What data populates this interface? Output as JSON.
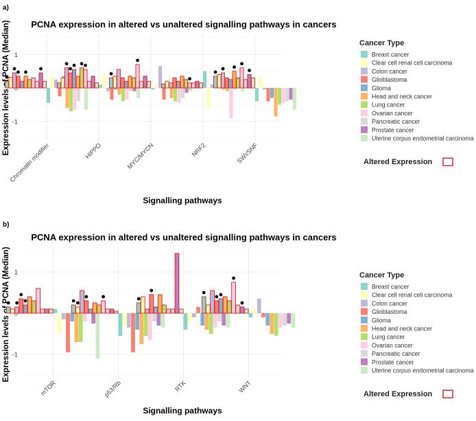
{
  "legend": {
    "title": "Cancer Type",
    "items": [
      {
        "name": "Breast cancer",
        "color": "#8DD3C7"
      },
      {
        "name": "Clear cell renal cell carcinoma",
        "color": "#FFFFB3"
      },
      {
        "name": "Colon cancer",
        "color": "#BEBADA"
      },
      {
        "name": "Glioblastoma",
        "color": "#FB8072"
      },
      {
        "name": "Glioma",
        "color": "#80B1D3"
      },
      {
        "name": "Head and neck cancer",
        "color": "#FDB462"
      },
      {
        "name": "Lung cancer",
        "color": "#B3DE69"
      },
      {
        "name": "Ovarian cancer",
        "color": "#FCCDE5"
      },
      {
        "name": "Pancreatic cancer",
        "color": "#D9D9D9"
      },
      {
        "name": "Prostate cancer",
        "color": "#BC80BD"
      },
      {
        "name": "Uterine corpus endometrial carcinoma",
        "color": "#CCEBC5"
      }
    ],
    "altered_label": "Altered Expression",
    "altered_color": "#E41A1C"
  },
  "chart_data": [
    {
      "type": "bar",
      "panel_label": "a)",
      "title": "PCNA expression in altered vs unaltered signalling pathways in cancers",
      "xlabel": "Signalling pathways",
      "ylabel": "Expression levels of PCNA (Median)",
      "ylim": [
        -1.6,
        1.6
      ],
      "yticks": [
        -1,
        0,
        1
      ],
      "categories": [
        "Chromatin modifier",
        "HIPPO",
        "MYC/MYCN",
        "NRF2",
        "SWI/SNF"
      ],
      "series_names": [
        "Breast cancer",
        "Clear cell renal cell carcinoma",
        "Colon cancer",
        "Glioblastoma",
        "Glioma",
        "Head and neck cancer",
        "Lung cancer",
        "Ovarian cancer",
        "Pancreatic cancer",
        "Prostate cancer",
        "Uterine corpus endometrial carcinoma"
      ],
      "altered": [
        [
          0.2,
          0.32,
          0.45,
          0.35,
          0.2,
          0.35,
          0.25,
          0.3,
          0.2,
          0.45,
          0.2
        ],
        [
          0.15,
          0.3,
          0.6,
          0.45,
          0.55,
          0.35,
          0.6,
          0.55,
          0.2,
          0.35,
          0.15
        ],
        [
          0.3,
          0.35,
          0.55,
          0.3,
          0.2,
          0.35,
          0.3,
          0.7,
          0.2,
          0.35,
          0.2
        ],
        [
          0.12,
          0.2,
          0.15,
          0.3,
          0.2,
          0.35,
          0.25,
          0.15,
          0.15,
          0.2,
          0.15
        ],
        [
          0.35,
          0.4,
          0.45,
          0.3,
          0.25,
          0.5,
          0.3,
          0.6,
          0.25,
          0.4,
          0.3
        ]
      ],
      "unaltered": [
        [
          -0.45,
          0.35,
          0.25,
          -0.25,
          0.35,
          -0.6,
          -0.7,
          -0.65,
          -0.4,
          0.55,
          -0.65
        ],
        [
          0.1,
          0.4,
          -0.1,
          -0.35,
          -0.05,
          -0.2,
          -0.4,
          -0.35,
          -0.1,
          -0.1,
          -0.3
        ],
        [
          -0.05,
          0.1,
          0.65,
          -0.35,
          0.15,
          -0.3,
          -0.4,
          -0.45,
          -0.3,
          -0.15,
          -0.1
        ],
        [
          0.5,
          -0.6,
          0.1,
          0.35,
          0.1,
          -0.05,
          -0.1,
          -0.9,
          -0.05,
          0.05,
          -0.1
        ],
        [
          -0.4,
          0.3,
          -0.05,
          -0.4,
          -0.3,
          -0.85,
          -0.5,
          -0.45,
          -0.4,
          -0.35,
          -0.65
        ]
      ],
      "significant": [
        [
          1,
          0,
          1,
          1,
          0,
          1,
          0,
          0,
          0,
          1,
          0
        ],
        [
          0,
          0,
          1,
          1,
          1,
          0,
          1,
          1,
          0,
          0,
          0
        ],
        [
          1,
          0,
          0,
          0,
          0,
          0,
          0,
          1,
          0,
          0,
          0
        ],
        [
          0,
          0,
          0,
          0,
          0,
          0,
          0,
          1,
          0,
          0,
          0
        ],
        [
          1,
          0,
          1,
          0,
          0,
          1,
          0,
          1,
          0,
          1,
          0
        ]
      ]
    },
    {
      "type": "bar",
      "panel_label": "b)",
      "title": "PCNA expression in altered vs unaltered signalling pathways in cancers",
      "xlabel": "Signalling pathways",
      "ylabel": "Expression levels of PCNA (Median)",
      "ylim": [
        -1.6,
        1.6
      ],
      "yticks": [
        -1,
        0,
        1
      ],
      "categories": [
        "mTOR",
        "p53/Rb",
        "RTK",
        "WNT"
      ],
      "series_names": [
        "Breast cancer",
        "Clear cell renal cell carcinoma",
        "Colon cancer",
        "Glioblastoma",
        "Glioma",
        "Head and neck cancer",
        "Lung cancer",
        "Ovarian cancer",
        "Pancreatic cancer",
        "Prostate cancer",
        "Uterine corpus endometrial carcinoma"
      ],
      "altered": [
        [
          0.15,
          0.1,
          0.15,
          0.35,
          0.2,
          0.4,
          0.3,
          0.6,
          0.1,
          0.1,
          0.1
        ],
        [
          0.2,
          0.15,
          0.55,
          0.3,
          0.1,
          0.25,
          0.2,
          0.3,
          0.1,
          0.1,
          0.05
        ],
        [
          0.25,
          0.4,
          0.1,
          0.45,
          0.15,
          0.45,
          0.2,
          0.1,
          0.1,
          1.45,
          0.1
        ],
        [
          0.4,
          0.2,
          0.55,
          0.3,
          0.35,
          0.4,
          0.3,
          0.75,
          0.2,
          0.15,
          0.1
        ]
      ],
      "unaltered": [
        [
          0.1,
          -0.5,
          -0.15,
          -0.95,
          -0.2,
          -0.7,
          -0.7,
          -0.2,
          0.02,
          -0.25,
          -1.1
        ],
        [
          -0.55,
          -0.3,
          -0.35,
          -0.95,
          -0.4,
          -0.75,
          -0.55,
          -0.65,
          -0.2,
          -0.3,
          -0.35
        ],
        [
          -0.4,
          -0.2,
          -0.1,
          0.15,
          -0.3,
          -0.4,
          -0.5,
          -0.35,
          -0.2,
          -0.3,
          -0.35
        ],
        [
          -0.1,
          0.1,
          0.35,
          -0.1,
          -0.3,
          -0.5,
          -0.55,
          -0.35,
          -0.3,
          -0.25,
          -0.35
        ]
      ],
      "significant": [
        [
          1,
          0,
          1,
          1,
          1,
          0,
          0,
          0,
          0,
          0,
          0
        ],
        [
          1,
          1,
          0,
          1,
          0,
          0,
          0,
          1,
          0,
          0,
          0
        ],
        [
          1,
          0,
          0,
          1,
          0,
          0,
          0,
          0,
          0,
          0,
          0
        ],
        [
          1,
          0,
          0,
          1,
          1,
          0,
          0,
          1,
          0,
          1,
          0
        ]
      ]
    }
  ]
}
